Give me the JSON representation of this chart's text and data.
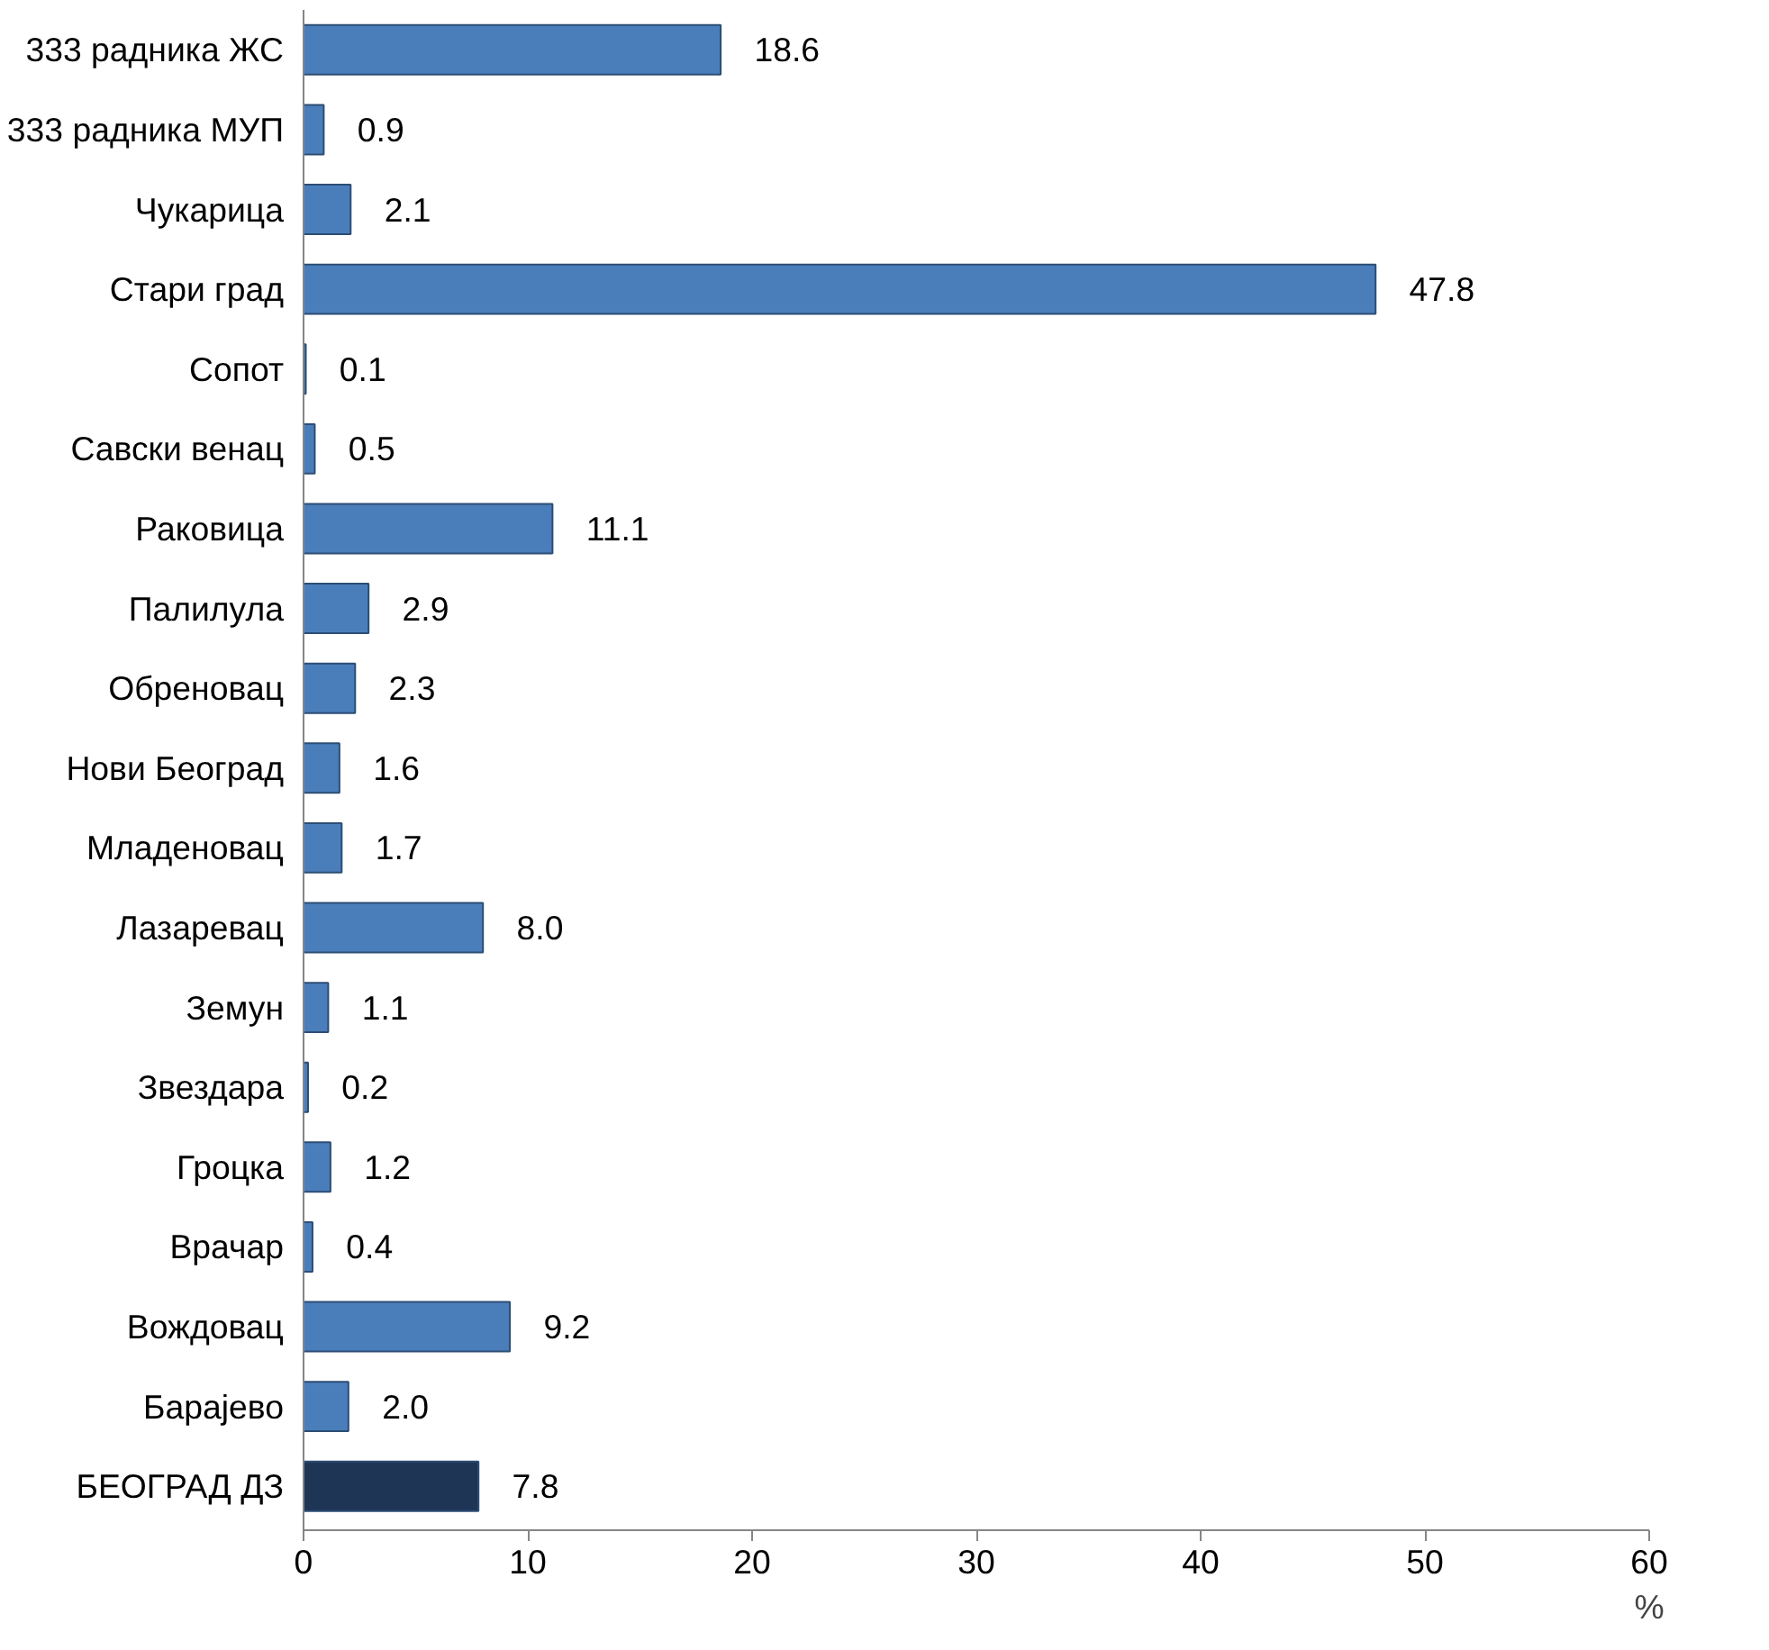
{
  "chart_data": {
    "type": "bar",
    "orientation": "horizontal",
    "xlabel": "%",
    "categories": [
      "333 радника ЖС",
      "333 радника МУП",
      "Чукарица",
      "Стари град",
      "Сопот",
      "Савски венац",
      "Раковица",
      "Палилула",
      "Обреновац",
      "Нови Београд",
      "Младеновац",
      "Лазаревац",
      "Земун",
      "Звездара",
      "Гроцка",
      "Врачар",
      "Вождовац",
      "Барајево",
      "БЕОГРАД ДЗ"
    ],
    "values": [
      18.6,
      0.9,
      2.1,
      47.8,
      0.1,
      0.5,
      11.1,
      2.9,
      2.3,
      1.6,
      1.7,
      8.0,
      1.1,
      0.2,
      1.2,
      0.4,
      9.2,
      2.0,
      7.8
    ],
    "value_labels": [
      "18.6",
      "0.9",
      "2.1",
      "47.8",
      "0.1",
      "0.5",
      "11.1",
      "2.9",
      "2.3",
      "1.6",
      "1.7",
      "8.0",
      "1.1",
      "0.2",
      "1.2",
      "0.4",
      "9.2",
      "2.0",
      "7.8"
    ],
    "colors": [
      "#4a7ebb",
      "#4a7ebb",
      "#4a7ebb",
      "#4a7ebb",
      "#4a7ebb",
      "#4a7ebb",
      "#4a7ebb",
      "#4a7ebb",
      "#4a7ebb",
      "#4a7ebb",
      "#4a7ebb",
      "#4a7ebb",
      "#4a7ebb",
      "#4a7ebb",
      "#4a7ebb",
      "#4a7ebb",
      "#4a7ebb",
      "#4a7ebb",
      "#1f3556"
    ],
    "xlim": [
      0,
      60
    ],
    "xticks": [
      0,
      10,
      20,
      30,
      40,
      50,
      60
    ],
    "grid": false
  }
}
